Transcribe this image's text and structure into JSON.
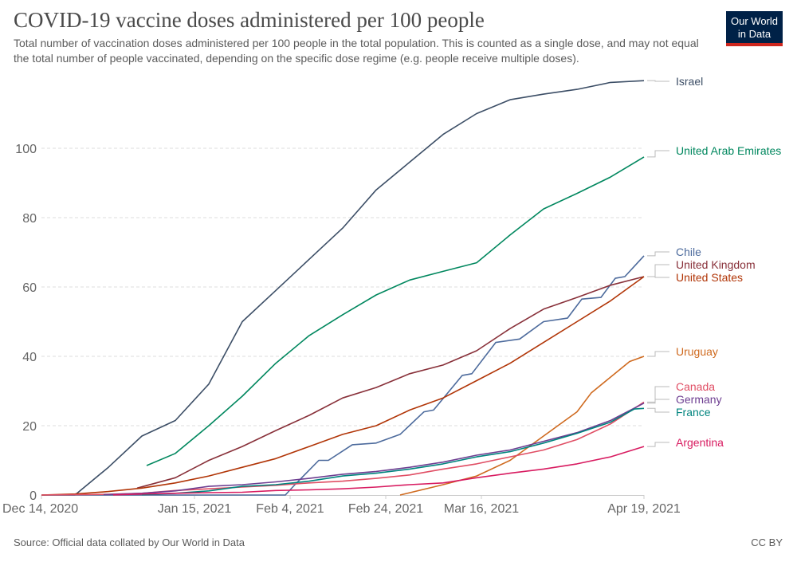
{
  "header": {
    "title": "COVID-19 vaccine doses administered per 100 people",
    "subtitle": "Total number of vaccination doses administered per 100 people in the total population. This is counted as a single dose, and may not equal the total number of people vaccinated, depending on the specific dose regime (e.g. people receive multiple doses).",
    "logo": "Our World in Data"
  },
  "footer": {
    "source": "Source: Official data collated by Our World in Data",
    "license": "CC BY"
  },
  "chart_data": {
    "type": "line",
    "title": "COVID-19 vaccine doses administered per 100 people",
    "xlim": [
      "2020-12-14",
      "2021-04-19"
    ],
    "ylim": [
      0,
      120
    ],
    "x_ticks": [
      "Dec 14, 2020",
      "Jan 15, 2021",
      "Feb 4, 2021",
      "Feb 24, 2021",
      "Mar 16, 2021",
      "Apr 19, 2021"
    ],
    "x_tick_dates": [
      "2020-12-14",
      "2021-01-15",
      "2021-02-04",
      "2021-02-24",
      "2021-03-16",
      "2021-04-19"
    ],
    "y_ticks": [
      0,
      20,
      40,
      60,
      80,
      100
    ],
    "grid": "horizontal dashed",
    "legend": "right, line-end labels",
    "series": [
      {
        "name": "Israel",
        "color": "#3c4e66",
        "points": [
          [
            "2020-12-14",
            0
          ],
          [
            "2020-12-21",
            0
          ],
          [
            "2020-12-28",
            8
          ],
          [
            "2021-01-04",
            17
          ],
          [
            "2021-01-11",
            21.5
          ],
          [
            "2021-01-18",
            32
          ],
          [
            "2021-01-25",
            50
          ],
          [
            "2021-02-01",
            59
          ],
          [
            "2021-02-08",
            68
          ],
          [
            "2021-02-15",
            77
          ],
          [
            "2021-02-22",
            88
          ],
          [
            "2021-03-01",
            96
          ],
          [
            "2021-03-08",
            104
          ],
          [
            "2021-03-15",
            110
          ],
          [
            "2021-03-22",
            114
          ],
          [
            "2021-03-29",
            115.6
          ],
          [
            "2021-04-05",
            117
          ],
          [
            "2021-04-12",
            119
          ],
          [
            "2021-04-19",
            119.5
          ]
        ]
      },
      {
        "name": "United Arab Emirates",
        "color": "#00875e",
        "points": [
          [
            "2021-01-05",
            8.5
          ],
          [
            "2021-01-11",
            12
          ],
          [
            "2021-01-18",
            20
          ],
          [
            "2021-01-25",
            28.5
          ],
          [
            "2021-02-01",
            38
          ],
          [
            "2021-02-08",
            46
          ],
          [
            "2021-02-15",
            52
          ],
          [
            "2021-02-22",
            57.7
          ],
          [
            "2021-03-01",
            62
          ],
          [
            "2021-03-08",
            64.5
          ],
          [
            "2021-03-15",
            67
          ],
          [
            "2021-03-22",
            75
          ],
          [
            "2021-03-29",
            82.5
          ],
          [
            "2021-04-05",
            87
          ],
          [
            "2021-04-12",
            91.7
          ],
          [
            "2021-04-19",
            97.5
          ]
        ]
      },
      {
        "name": "Chile",
        "color": "#4c6a9c",
        "points": [
          [
            "2020-12-14",
            0
          ],
          [
            "2021-02-03",
            0
          ],
          [
            "2021-02-05",
            3
          ],
          [
            "2021-02-10",
            10
          ],
          [
            "2021-02-12",
            10
          ],
          [
            "2021-02-17",
            14.5
          ],
          [
            "2021-02-22",
            15
          ],
          [
            "2021-02-27",
            17.5
          ],
          [
            "2021-03-04",
            24
          ],
          [
            "2021-03-06",
            24.5
          ],
          [
            "2021-03-12",
            34.5
          ],
          [
            "2021-03-14",
            35
          ],
          [
            "2021-03-19",
            44
          ],
          [
            "2021-03-24",
            45
          ],
          [
            "2021-03-29",
            50
          ],
          [
            "2021-04-03",
            51
          ],
          [
            "2021-04-06",
            56.5
          ],
          [
            "2021-04-10",
            57
          ],
          [
            "2021-04-13",
            62.5
          ],
          [
            "2021-04-15",
            63
          ],
          [
            "2021-04-17",
            66
          ],
          [
            "2021-04-19",
            69
          ]
        ]
      },
      {
        "name": "United Kingdom",
        "color": "#883039",
        "points": [
          [
            "2021-01-03",
            2
          ],
          [
            "2021-01-11",
            5
          ],
          [
            "2021-01-18",
            10
          ],
          [
            "2021-01-25",
            14
          ],
          [
            "2021-02-01",
            18.6
          ],
          [
            "2021-02-08",
            23
          ],
          [
            "2021-02-15",
            28
          ],
          [
            "2021-02-22",
            31
          ],
          [
            "2021-03-01",
            35
          ],
          [
            "2021-03-08",
            37.5
          ],
          [
            "2021-03-15",
            41.6
          ],
          [
            "2021-03-22",
            48
          ],
          [
            "2021-03-29",
            53.6
          ],
          [
            "2021-04-05",
            57
          ],
          [
            "2021-04-12",
            60.5
          ],
          [
            "2021-04-19",
            63
          ]
        ]
      },
      {
        "name": "United States",
        "color": "#b13507",
        "points": [
          [
            "2020-12-14",
            0
          ],
          [
            "2020-12-21",
            0.3
          ],
          [
            "2020-12-28",
            1
          ],
          [
            "2021-01-04",
            2
          ],
          [
            "2021-01-11",
            3.5
          ],
          [
            "2021-01-18",
            5.5
          ],
          [
            "2021-01-25",
            8
          ],
          [
            "2021-02-01",
            10.5
          ],
          [
            "2021-02-08",
            14
          ],
          [
            "2021-02-15",
            17.5
          ],
          [
            "2021-02-22",
            20
          ],
          [
            "2021-03-01",
            24.5
          ],
          [
            "2021-03-08",
            28
          ],
          [
            "2021-03-15",
            33
          ],
          [
            "2021-03-22",
            38
          ],
          [
            "2021-03-29",
            44
          ],
          [
            "2021-04-05",
            50
          ],
          [
            "2021-04-12",
            56
          ],
          [
            "2021-04-19",
            63
          ]
        ]
      },
      {
        "name": "Uruguay",
        "color": "#cf6a1f",
        "points": [
          [
            "2021-02-27",
            0
          ],
          [
            "2021-03-08",
            3
          ],
          [
            "2021-03-15",
            5.5
          ],
          [
            "2021-03-22",
            10
          ],
          [
            "2021-03-29",
            17
          ],
          [
            "2021-04-05",
            24
          ],
          [
            "2021-04-08",
            29.5
          ],
          [
            "2021-04-12",
            34
          ],
          [
            "2021-04-16",
            38.5
          ],
          [
            "2021-04-19",
            40
          ]
        ]
      },
      {
        "name": "Canada",
        "color": "#e04e64",
        "points": [
          [
            "2020-12-14",
            0
          ],
          [
            "2020-12-28",
            0.2
          ],
          [
            "2021-01-04",
            0.5
          ],
          [
            "2021-01-11",
            1.3
          ],
          [
            "2021-01-18",
            1.8
          ],
          [
            "2021-01-25",
            2.3
          ],
          [
            "2021-02-01",
            2.8
          ],
          [
            "2021-02-08",
            3.5
          ],
          [
            "2021-02-15",
            4
          ],
          [
            "2021-02-22",
            4.8
          ],
          [
            "2021-03-01",
            5.8
          ],
          [
            "2021-03-08",
            7.5
          ],
          [
            "2021-03-15",
            9
          ],
          [
            "2021-03-22",
            11
          ],
          [
            "2021-03-29",
            13
          ],
          [
            "2021-04-05",
            16
          ],
          [
            "2021-04-12",
            20.5
          ],
          [
            "2021-04-19",
            26.8
          ]
        ]
      },
      {
        "name": "Germany",
        "color": "#6d3e91",
        "points": [
          [
            "2020-12-27",
            0.1
          ],
          [
            "2021-01-04",
            0.5
          ],
          [
            "2021-01-11",
            1.2
          ],
          [
            "2021-01-18",
            2.5
          ],
          [
            "2021-01-25",
            3
          ],
          [
            "2021-02-01",
            3.8
          ],
          [
            "2021-02-08",
            4.8
          ],
          [
            "2021-02-15",
            6
          ],
          [
            "2021-02-22",
            6.8
          ],
          [
            "2021-03-01",
            8
          ],
          [
            "2021-03-08",
            9.5
          ],
          [
            "2021-03-15",
            11.5
          ],
          [
            "2021-03-22",
            13
          ],
          [
            "2021-03-29",
            15.5
          ],
          [
            "2021-04-05",
            18
          ],
          [
            "2021-04-12",
            21.5
          ],
          [
            "2021-04-19",
            26.5
          ]
        ]
      },
      {
        "name": "France",
        "color": "#00847e",
        "points": [
          [
            "2021-01-04",
            0.1
          ],
          [
            "2021-01-11",
            0.5
          ],
          [
            "2021-01-18",
            1.2
          ],
          [
            "2021-01-25",
            2.5
          ],
          [
            "2021-02-01",
            3
          ],
          [
            "2021-02-08",
            4
          ],
          [
            "2021-02-15",
            5.5
          ],
          [
            "2021-02-22",
            6.3
          ],
          [
            "2021-03-01",
            7.5
          ],
          [
            "2021-03-08",
            9
          ],
          [
            "2021-03-15",
            11
          ],
          [
            "2021-03-22",
            12.5
          ],
          [
            "2021-03-29",
            15
          ],
          [
            "2021-04-05",
            17.8
          ],
          [
            "2021-04-12",
            21
          ],
          [
            "2021-04-17",
            24.8
          ],
          [
            "2021-04-19",
            25
          ]
        ]
      },
      {
        "name": "Argentina",
        "color": "#d81b60",
        "points": [
          [
            "2020-12-29",
            0.05
          ],
          [
            "2021-01-04",
            0.3
          ],
          [
            "2021-01-11",
            0.5
          ],
          [
            "2021-01-18",
            0.7
          ],
          [
            "2021-01-25",
            0.8
          ],
          [
            "2021-02-01",
            1.3
          ],
          [
            "2021-02-08",
            1.5
          ],
          [
            "2021-02-15",
            1.8
          ],
          [
            "2021-02-22",
            2.3
          ],
          [
            "2021-03-01",
            3
          ],
          [
            "2021-03-08",
            3.5
          ],
          [
            "2021-03-15",
            5
          ],
          [
            "2021-03-22",
            6.3
          ],
          [
            "2021-03-29",
            7.5
          ],
          [
            "2021-04-05",
            9
          ],
          [
            "2021-04-12",
            11
          ],
          [
            "2021-04-19",
            14
          ]
        ]
      }
    ]
  }
}
